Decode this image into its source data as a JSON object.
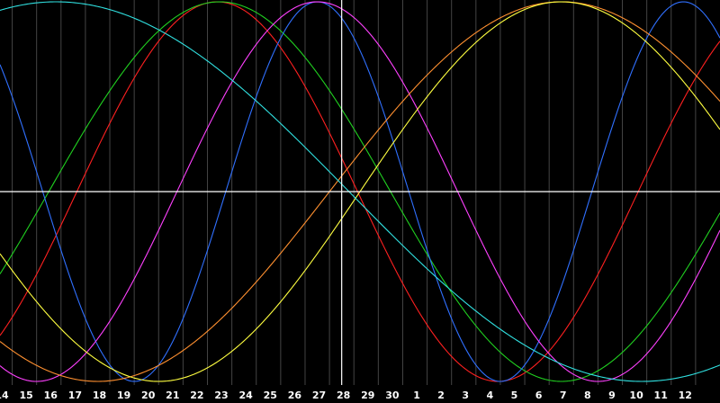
{
  "chart_data": {
    "type": "line",
    "title": "",
    "xlabel": "",
    "ylabel": "",
    "grid": true,
    "background": "#000000",
    "grid_color": "#444444",
    "crosshair_color": "#ffffff",
    "crosshair_at_label": "28",
    "categories": [
      "14",
      "15",
      "16",
      "17",
      "18",
      "19",
      "20",
      "21",
      "22",
      "23",
      "24",
      "25",
      "26",
      "27",
      "28",
      "29",
      "30",
      "1",
      "2",
      "3",
      "4",
      "5",
      "6",
      "7",
      "8",
      "9",
      "10",
      "11",
      "12"
    ],
    "x_start_index": 14,
    "x_end_index": 43.5,
    "ylim": [
      -1,
      1
    ],
    "series": [
      {
        "color": "#ff2020",
        "period_days": 23,
        "peak_day": 22.9
      },
      {
        "color": "#20d020",
        "period_days": 28,
        "peak_day": 23.0
      },
      {
        "color": "#3070ff",
        "period_days": 15,
        "peak_day": 27.0
      },
      {
        "color": "#ff40ff",
        "period_days": 23,
        "peak_day": 27.0
      },
      {
        "color": "#ff9030",
        "period_days": 38,
        "peak_day": 37.0
      },
      {
        "color": "#ffff40",
        "period_days": 33,
        "peak_day": 37.0
      },
      {
        "color": "#30e0e0",
        "period_days": 48,
        "peak_day": 16.3
      }
    ]
  }
}
